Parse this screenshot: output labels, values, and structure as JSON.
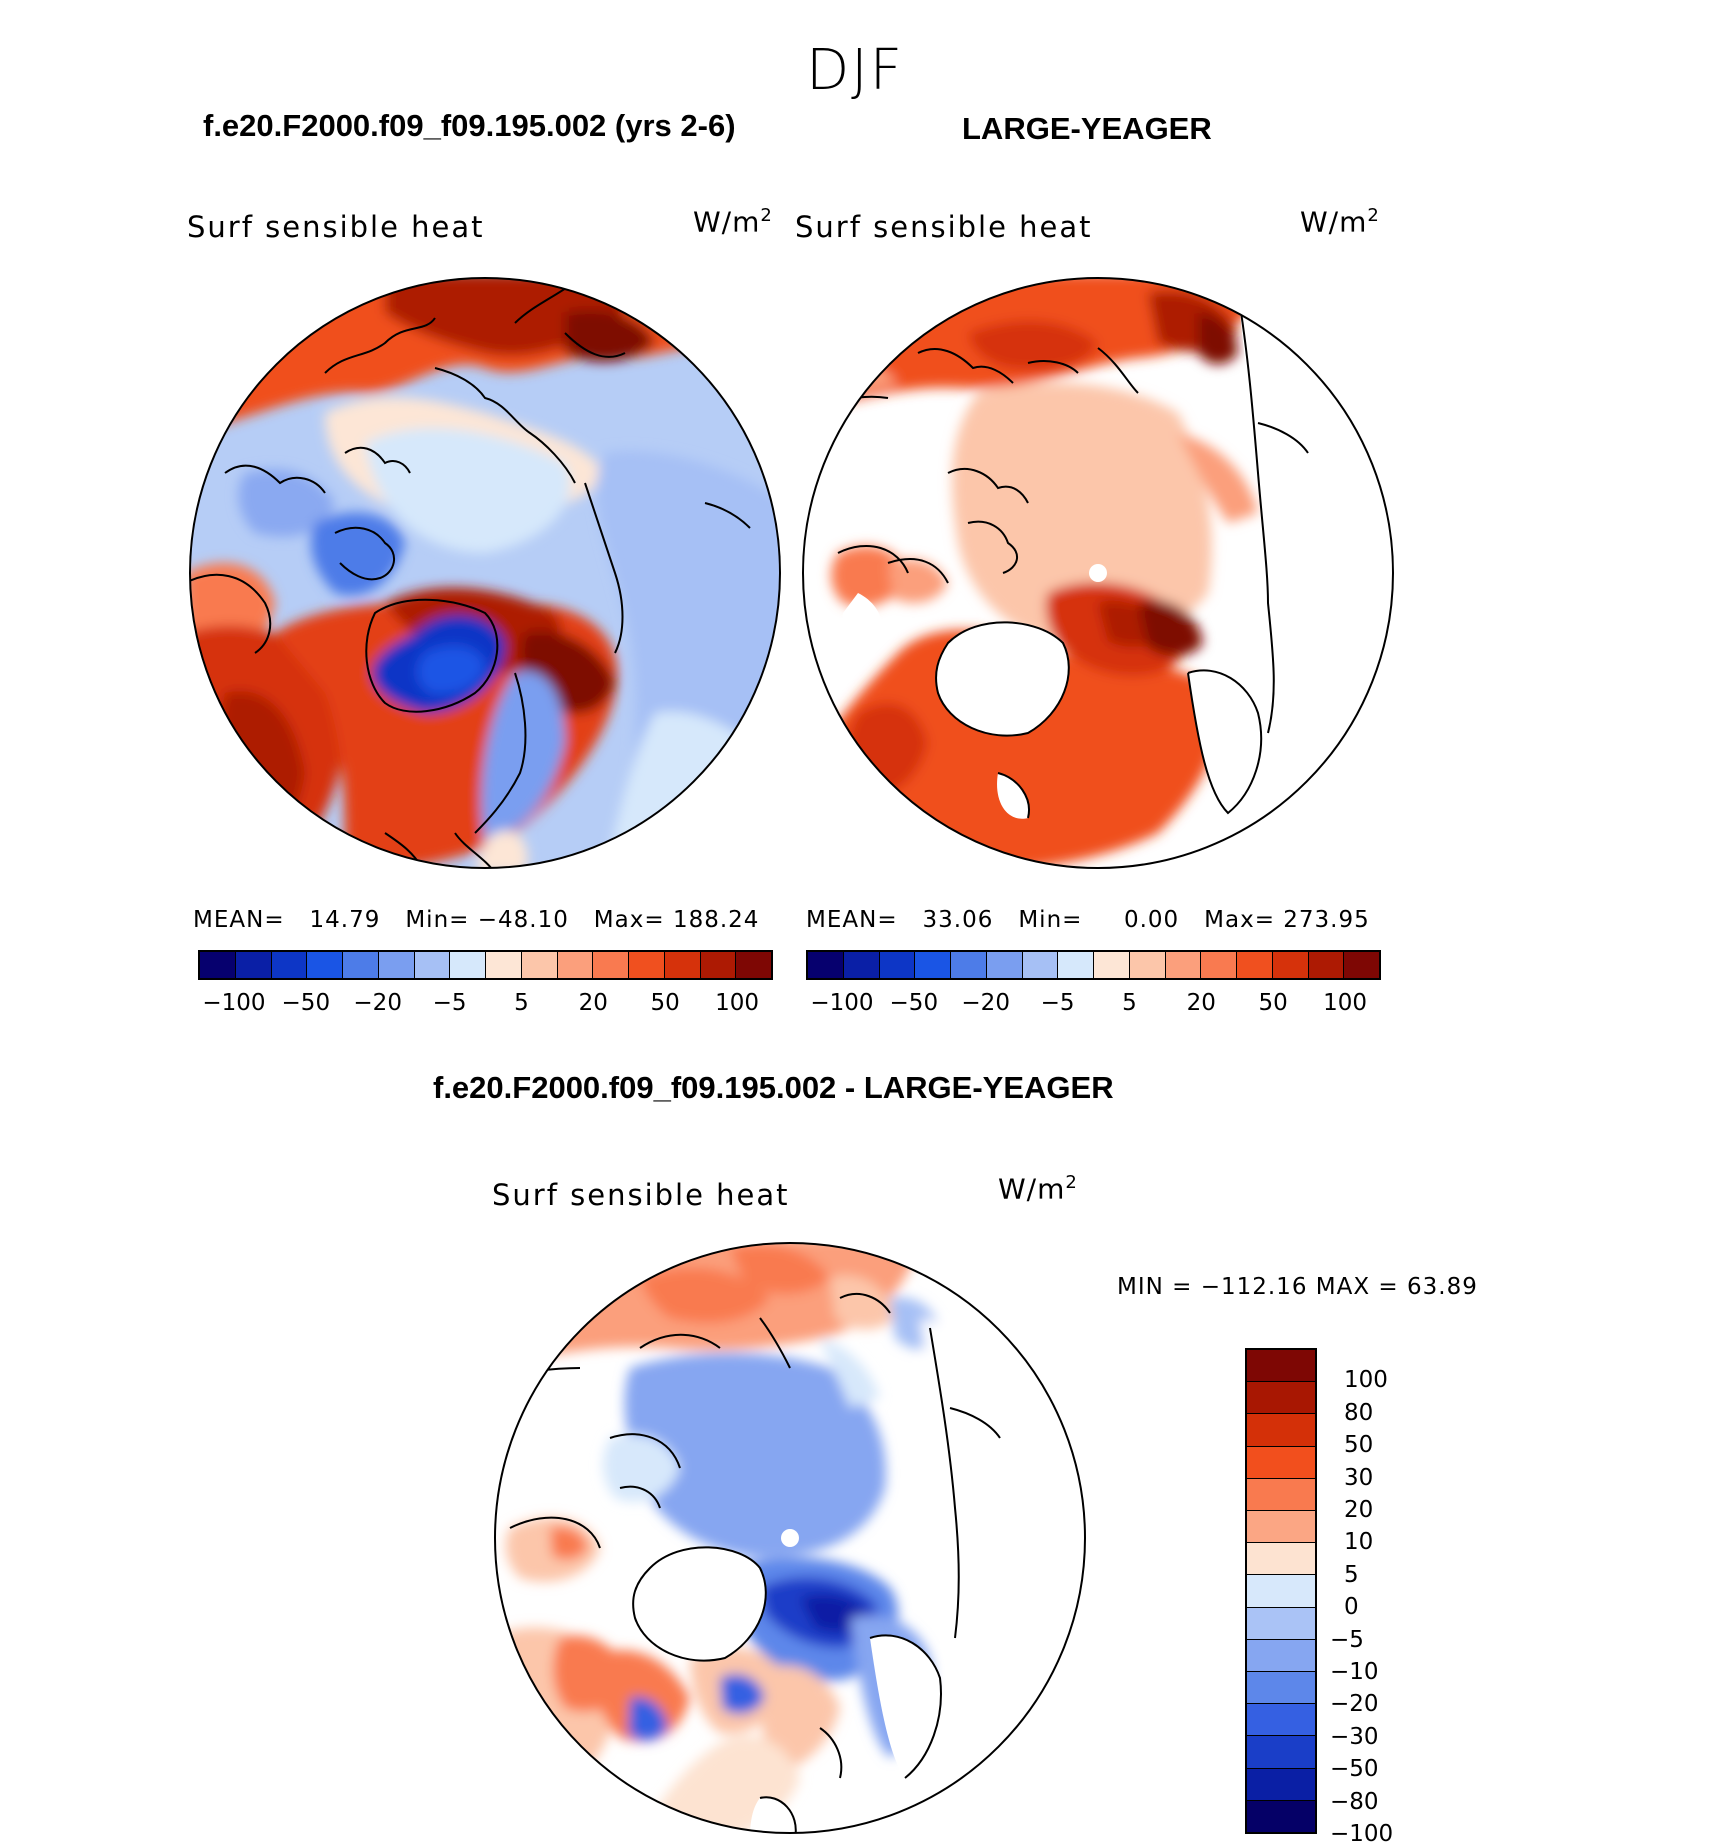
{
  "season": "DJF",
  "units": {
    "base": "W/m",
    "exp": "2"
  },
  "variable": "Surf sensible heat",
  "panel1": {
    "title": "f.e20.F2000.f09_f09.195.002 (yrs 2-6)",
    "mean_label": "MEAN=",
    "mean": "14.79",
    "min_label": "Min=",
    "min": "−48.10",
    "max_label": "Max=",
    "max": "188.24"
  },
  "panel2": {
    "title": "LARGE-YEAGER",
    "mean_label": "MEAN=",
    "mean": "33.06",
    "min_label": "Min=",
    "min": "0.00",
    "max_label": "Max=",
    "max": "273.95"
  },
  "panel3": {
    "title": "f.e20.F2000.f09_f09.195.002 - LARGE-YEAGER",
    "minmax_text": "MIN = −112.16 MAX =   63.89"
  },
  "horizontal_colorbar": {
    "colors": [
      "#06006e",
      "#0a1fa6",
      "#0d36c6",
      "#1a55e5",
      "#4d7ce8",
      "#7a9ef0",
      "#a6c0f5",
      "#d6e8fb",
      "#fde6d6",
      "#fcc6aa",
      "#fb9f7c",
      "#f97a50",
      "#f0501f",
      "#d6320b",
      "#ad1a03",
      "#7e0704"
    ],
    "labels": [
      "−100",
      "−50",
      "−20",
      "−5",
      "5",
      "20",
      "50",
      "100"
    ]
  },
  "vertical_colorbar": {
    "colors": [
      "#7e0704",
      "#a81702",
      "#d43008",
      "#f24f1d",
      "#f97a4f",
      "#fba684",
      "#fde3d1",
      "#d7e8fb",
      "#aac3f6",
      "#86a6f1",
      "#5d87ea",
      "#3560e2",
      "#1a3ec8",
      "#0a1fa5",
      "#050067"
    ],
    "labels": [
      "100",
      "80",
      "50",
      "30",
      "20",
      "10",
      "5",
      "0",
      "−5",
      "−10",
      "−20",
      "−30",
      "−50",
      "−80",
      "−100"
    ]
  }
}
